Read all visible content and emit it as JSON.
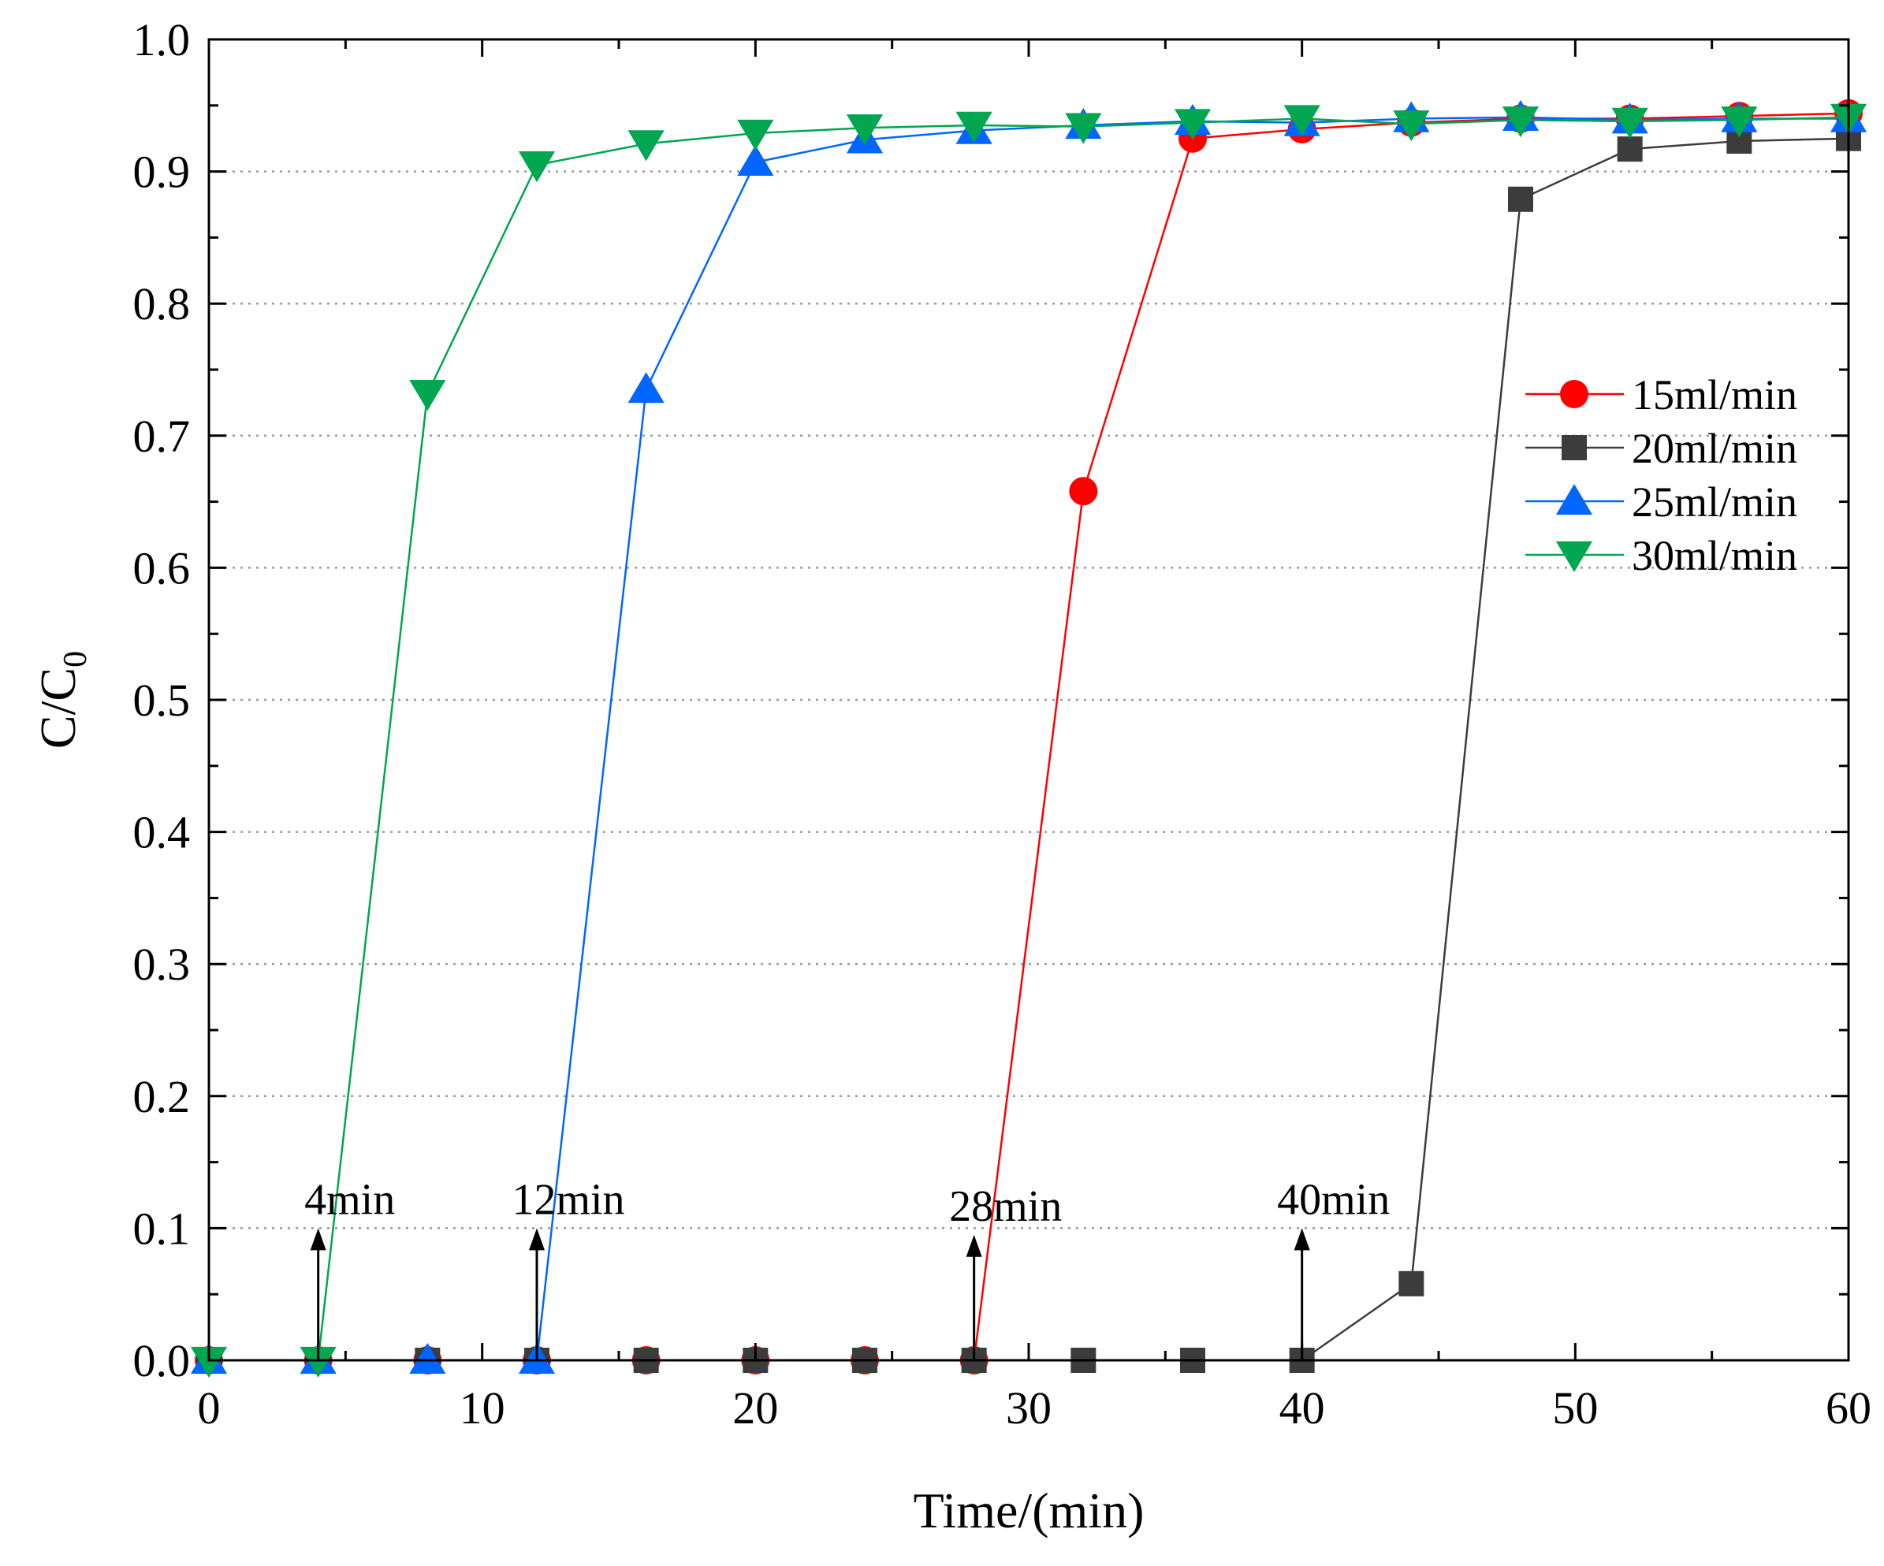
{
  "chart_data": {
    "type": "line",
    "title": "",
    "xlabel": "Time/(min)",
    "ylabel": {
      "main": "C/C",
      "sub": "0"
    },
    "xlim": [
      0,
      60
    ],
    "ylim": [
      0.0,
      1.0
    ],
    "x_ticks": [
      0,
      10,
      20,
      30,
      40,
      50,
      60
    ],
    "x_tick_labels": [
      "0",
      "10",
      "20",
      "30",
      "40",
      "50",
      "60"
    ],
    "y_ticks": [
      0.0,
      0.1,
      0.2,
      0.3,
      0.4,
      0.5,
      0.6,
      0.7,
      0.8,
      0.9,
      1.0
    ],
    "y_tick_labels": [
      "0.0",
      "0.1",
      "0.2",
      "0.3",
      "0.4",
      "0.5",
      "0.6",
      "0.7",
      "0.8",
      "0.9",
      "1.0"
    ],
    "grid": "horizontal dotted",
    "legend_position": "right",
    "series": [
      {
        "name": "15ml/min",
        "color": "#ff0000",
        "marker": "circle",
        "x": [
          0,
          4,
          8,
          12,
          16,
          20,
          24,
          28,
          32,
          36,
          40,
          44,
          48,
          52,
          56,
          60
        ],
        "y": [
          0,
          0,
          0,
          0,
          0,
          0,
          0,
          0,
          0.658,
          0.925,
          0.932,
          0.937,
          0.94,
          0.94,
          0.942,
          0.944
        ]
      },
      {
        "name": "20ml/min",
        "color": "#3c3c3c",
        "marker": "square",
        "x": [
          0,
          4,
          8,
          12,
          16,
          20,
          24,
          28,
          32,
          36,
          40,
          44,
          48,
          52,
          56,
          60
        ],
        "y": [
          0,
          0,
          0,
          0,
          0,
          0,
          0,
          0,
          0,
          0,
          0,
          0.058,
          0.879,
          0.917,
          0.923,
          0.925
        ]
      },
      {
        "name": "25ml/min",
        "color": "#0066ff",
        "marker": "triangle-up",
        "x": [
          0,
          4,
          8,
          12,
          16,
          20,
          24,
          28,
          32,
          36,
          40,
          44,
          48,
          52,
          56,
          60
        ],
        "y": [
          0,
          0,
          0,
          0,
          0.735,
          0.907,
          0.924,
          0.931,
          0.935,
          0.938,
          0.937,
          0.94,
          0.941,
          0.939,
          0.94,
          0.94
        ]
      },
      {
        "name": "30ml/min",
        "color": "#00a650",
        "marker": "triangle-down",
        "x": [
          0,
          4,
          8,
          12,
          16,
          20,
          24,
          28,
          32,
          36,
          40,
          44,
          48,
          52,
          56,
          60
        ],
        "y": [
          0,
          0,
          0.732,
          0.905,
          0.921,
          0.929,
          0.933,
          0.935,
          0.934,
          0.937,
          0.94,
          0.936,
          0.939,
          0.938,
          0.939,
          0.941
        ]
      }
    ],
    "annotations": [
      {
        "text": "4min",
        "x": 4,
        "arrow_from_y": 0.0,
        "arrow_to_y": 0.1
      },
      {
        "text": "12min",
        "x": 12,
        "arrow_from_y": 0.0,
        "arrow_to_y": 0.1
      },
      {
        "text": "28min",
        "x": 28,
        "arrow_from_y": 0.0,
        "arrow_to_y": 0.095
      },
      {
        "text": "40min",
        "x": 40,
        "arrow_from_y": 0.0,
        "arrow_to_y": 0.1
      }
    ]
  }
}
